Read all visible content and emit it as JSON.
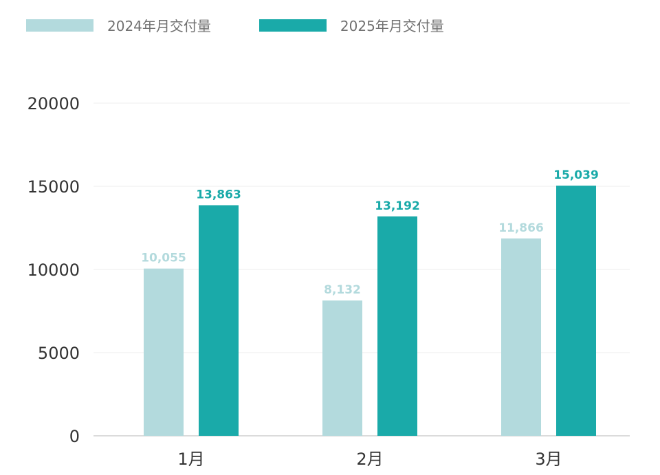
{
  "chart_data": {
    "type": "bar",
    "categories": [
      "1月",
      "2月",
      "3月"
    ],
    "series": [
      {
        "name": "2024年月交付量",
        "values": [
          10055,
          8132,
          11866
        ],
        "labels": [
          "10,055",
          "8,132",
          "11,866"
        ],
        "color": "#b3dadd"
      },
      {
        "name": "2025年月交付量",
        "values": [
          13863,
          13192,
          15039
        ],
        "labels": [
          "13,863",
          "13,192",
          "15,039"
        ],
        "color": "#1aaaa9"
      }
    ],
    "yticks": [
      "0",
      "5000",
      "10000",
      "15000",
      "20000"
    ],
    "ylim": [
      0,
      20000
    ],
    "grid": true,
    "legend_position": "top-left"
  }
}
